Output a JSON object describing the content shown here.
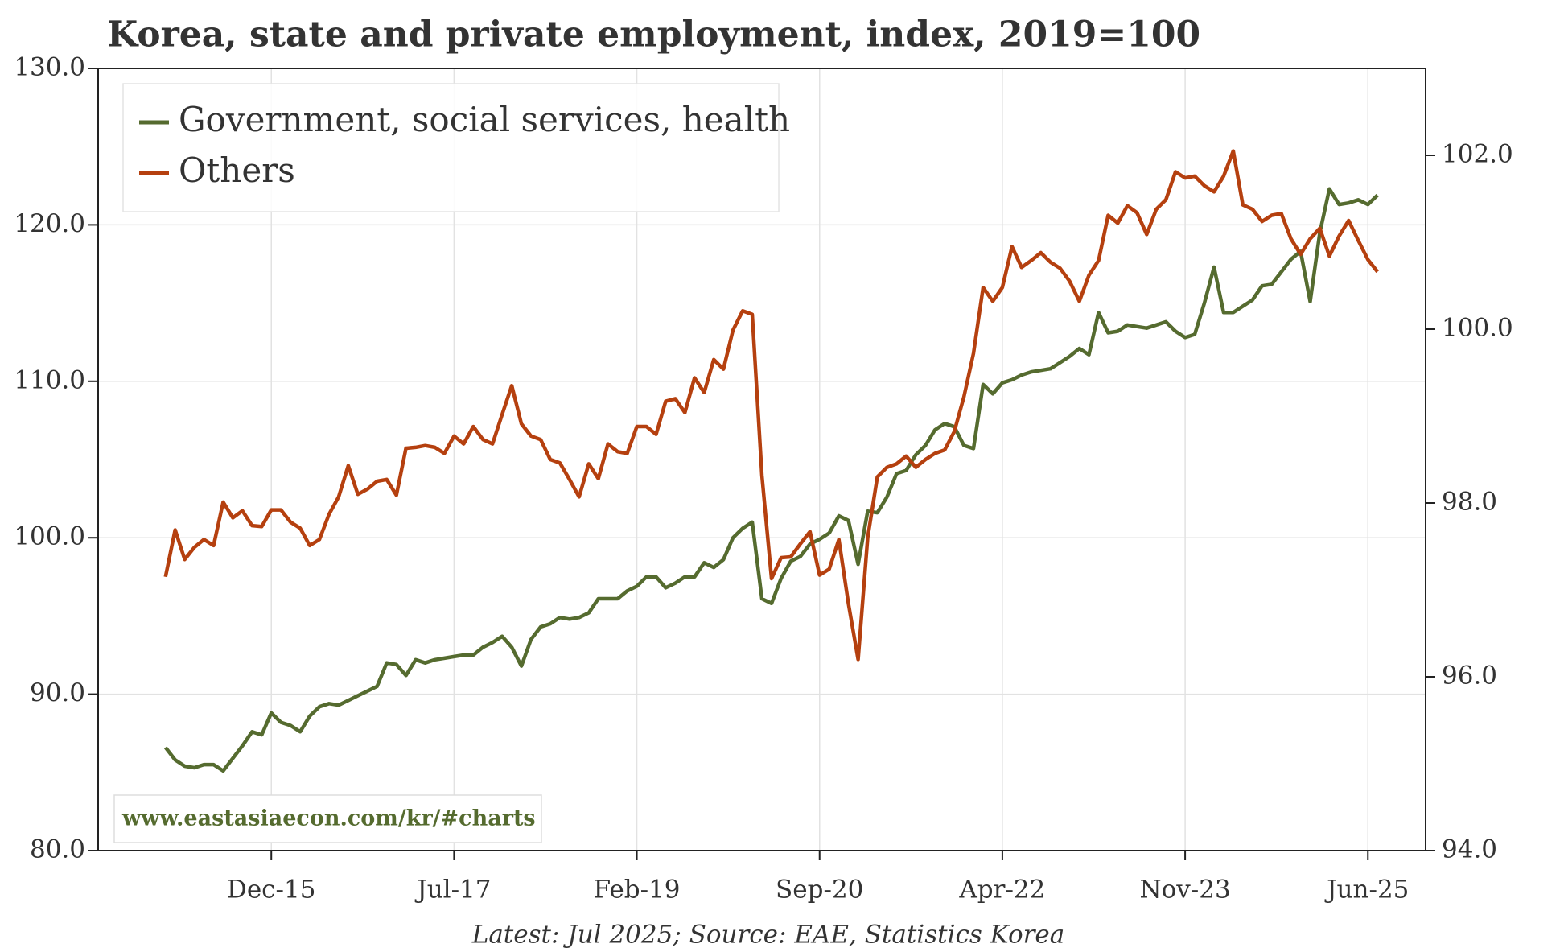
{
  "chart_data": {
    "type": "line",
    "title": "Korea, state and private employment, index, 2019=100",
    "caption": "Latest: Jul 2025; Source: EAE, Statistics Korea",
    "watermark": "www.eastasiaecon.com/kr/#charts",
    "x": [
      "2015-01",
      "2015-02",
      "2015-03",
      "2015-04",
      "2015-05",
      "2015-06",
      "2015-07",
      "2015-08",
      "2015-09",
      "2015-10",
      "2015-11",
      "2015-12",
      "2016-01",
      "2016-02",
      "2016-03",
      "2016-04",
      "2016-05",
      "2016-06",
      "2016-07",
      "2016-08",
      "2016-09",
      "2016-10",
      "2016-11",
      "2016-12",
      "2017-01",
      "2017-02",
      "2017-03",
      "2017-04",
      "2017-05",
      "2017-06",
      "2017-07",
      "2017-08",
      "2017-09",
      "2017-10",
      "2017-11",
      "2017-12",
      "2018-01",
      "2018-02",
      "2018-03",
      "2018-04",
      "2018-05",
      "2018-06",
      "2018-07",
      "2018-08",
      "2018-09",
      "2018-10",
      "2018-11",
      "2018-12",
      "2019-01",
      "2019-02",
      "2019-03",
      "2019-04",
      "2019-05",
      "2019-06",
      "2019-07",
      "2019-08",
      "2019-09",
      "2019-10",
      "2019-11",
      "2019-12",
      "2020-01",
      "2020-02",
      "2020-03",
      "2020-04",
      "2020-05",
      "2020-06",
      "2020-07",
      "2020-08",
      "2020-09",
      "2020-10",
      "2020-11",
      "2020-12",
      "2021-01",
      "2021-02",
      "2021-03",
      "2021-04",
      "2021-05",
      "2021-06",
      "2021-07",
      "2021-08",
      "2021-09",
      "2021-10",
      "2021-11",
      "2021-12",
      "2022-01",
      "2022-02",
      "2022-03",
      "2022-04",
      "2022-05",
      "2022-06",
      "2022-07",
      "2022-08",
      "2022-09",
      "2022-10",
      "2022-11",
      "2022-12",
      "2023-01",
      "2023-02",
      "2023-03",
      "2023-04",
      "2023-05",
      "2023-06",
      "2023-07",
      "2023-08",
      "2023-09",
      "2023-10",
      "2023-11",
      "2023-12",
      "2024-01",
      "2024-02",
      "2024-03",
      "2024-04",
      "2024-05",
      "2024-06",
      "2024-07",
      "2024-08",
      "2024-09",
      "2024-10",
      "2024-11",
      "2024-12",
      "2025-01",
      "2025-02",
      "2025-03",
      "2025-04",
      "2025-05",
      "2025-06",
      "2025-07"
    ],
    "series": [
      {
        "name": "Government, social services, health",
        "color": "#556b2f",
        "axis": "y",
        "values": [
          86.6,
          85.8,
          85.4,
          85.3,
          85.5,
          85.5,
          85.1,
          85.9,
          86.7,
          87.6,
          87.4,
          88.8,
          88.2,
          88.0,
          87.6,
          88.6,
          89.2,
          89.4,
          89.3,
          89.6,
          89.9,
          90.2,
          90.5,
          92.0,
          91.9,
          91.2,
          92.2,
          92.0,
          92.2,
          92.3,
          92.4,
          92.5,
          92.5,
          93.0,
          93.3,
          93.7,
          93.0,
          91.8,
          93.5,
          94.3,
          94.5,
          94.9,
          94.8,
          94.9,
          95.2,
          96.1,
          96.1,
          96.1,
          96.6,
          96.9,
          97.5,
          97.5,
          96.8,
          97.1,
          97.5,
          97.5,
          98.4,
          98.1,
          98.6,
          100.0,
          100.6,
          101.0,
          96.1,
          95.8,
          97.4,
          98.5,
          98.8,
          99.6,
          99.9,
          100.3,
          101.4,
          101.1,
          98.3,
          101.7,
          101.6,
          102.6,
          104.1,
          104.3,
          105.3,
          105.9,
          106.9,
          107.3,
          107.1,
          105.9,
          105.7,
          109.8,
          109.2,
          109.9,
          110.1,
          110.4,
          110.6,
          110.7,
          110.8,
          111.2,
          111.6,
          112.1,
          111.7,
          114.4,
          113.1,
          113.2,
          113.6,
          113.5,
          113.4,
          113.6,
          113.8,
          113.2,
          112.8,
          113.0,
          115.0,
          117.3,
          114.4,
          114.4,
          114.8,
          115.2,
          116.1,
          116.2,
          117.0,
          117.8,
          118.3,
          115.1,
          119.5,
          122.3,
          121.3,
          121.4,
          121.6,
          121.3,
          121.9
        ]
      },
      {
        "name": "Others",
        "color": "#b5400f",
        "axis": "y2",
        "values": [
          97.15,
          97.69,
          97.35,
          97.49,
          97.58,
          97.51,
          98.01,
          97.83,
          97.91,
          97.74,
          97.73,
          97.92,
          97.92,
          97.78,
          97.71,
          97.51,
          97.58,
          97.87,
          98.07,
          98.43,
          98.1,
          98.16,
          98.25,
          98.27,
          98.09,
          98.63,
          98.64,
          98.66,
          98.64,
          98.57,
          98.77,
          98.68,
          98.88,
          98.73,
          98.68,
          99.02,
          99.35,
          98.91,
          98.77,
          98.73,
          98.5,
          98.46,
          98.27,
          98.07,
          98.45,
          98.28,
          98.68,
          98.59,
          98.57,
          98.88,
          98.88,
          98.79,
          99.17,
          99.2,
          99.04,
          99.44,
          99.27,
          99.65,
          99.54,
          99.99,
          100.21,
          100.17,
          98.32,
          97.13,
          97.37,
          97.38,
          97.53,
          97.67,
          97.17,
          97.24,
          97.58,
          96.84,
          96.2,
          97.6,
          98.3,
          98.41,
          98.45,
          98.54,
          98.41,
          98.5,
          98.57,
          98.61,
          98.82,
          99.22,
          99.72,
          100.48,
          100.32,
          100.48,
          100.95,
          100.71,
          100.79,
          100.88,
          100.77,
          100.7,
          100.55,
          100.32,
          100.62,
          100.79,
          101.31,
          101.22,
          101.42,
          101.34,
          101.09,
          101.38,
          101.49,
          101.81,
          101.74,
          101.76,
          101.65,
          101.58,
          101.76,
          102.05,
          101.43,
          101.38,
          101.24,
          101.31,
          101.33,
          101.04,
          100.86,
          101.04,
          101.16,
          100.84,
          101.07,
          101.25,
          101.02,
          100.8,
          100.66
        ]
      }
    ],
    "xlim": [
      "2014-06",
      "2025-12"
    ],
    "xticks": [
      {
        "value": "2015-12",
        "label": "Dec-15"
      },
      {
        "value": "2017-07",
        "label": "Jul-17"
      },
      {
        "value": "2019-02",
        "label": "Feb-19"
      },
      {
        "value": "2020-09",
        "label": "Sep-20"
      },
      {
        "value": "2022-04",
        "label": "Apr-22"
      },
      {
        "value": "2023-11",
        "label": "Nov-23"
      },
      {
        "value": "2025-06",
        "label": "Jun-25"
      }
    ],
    "ylim": [
      80,
      130
    ],
    "yticks": [
      {
        "value": 80,
        "label": "80.0"
      },
      {
        "value": 90,
        "label": "90.0"
      },
      {
        "value": 100,
        "label": "100.0"
      },
      {
        "value": 110,
        "label": "110.0"
      },
      {
        "value": 120,
        "label": "120.0"
      },
      {
        "value": 130,
        "label": "130.0"
      }
    ],
    "y2lim": [
      94,
      103
    ],
    "y2ticks": [
      {
        "value": 94,
        "label": "94.0"
      },
      {
        "value": 96,
        "label": "96.0"
      },
      {
        "value": 98,
        "label": "98.0"
      },
      {
        "value": 100,
        "label": "100.0"
      },
      {
        "value": 102,
        "label": "102.0"
      }
    ],
    "grid": true,
    "legend_position": "upper-left"
  }
}
